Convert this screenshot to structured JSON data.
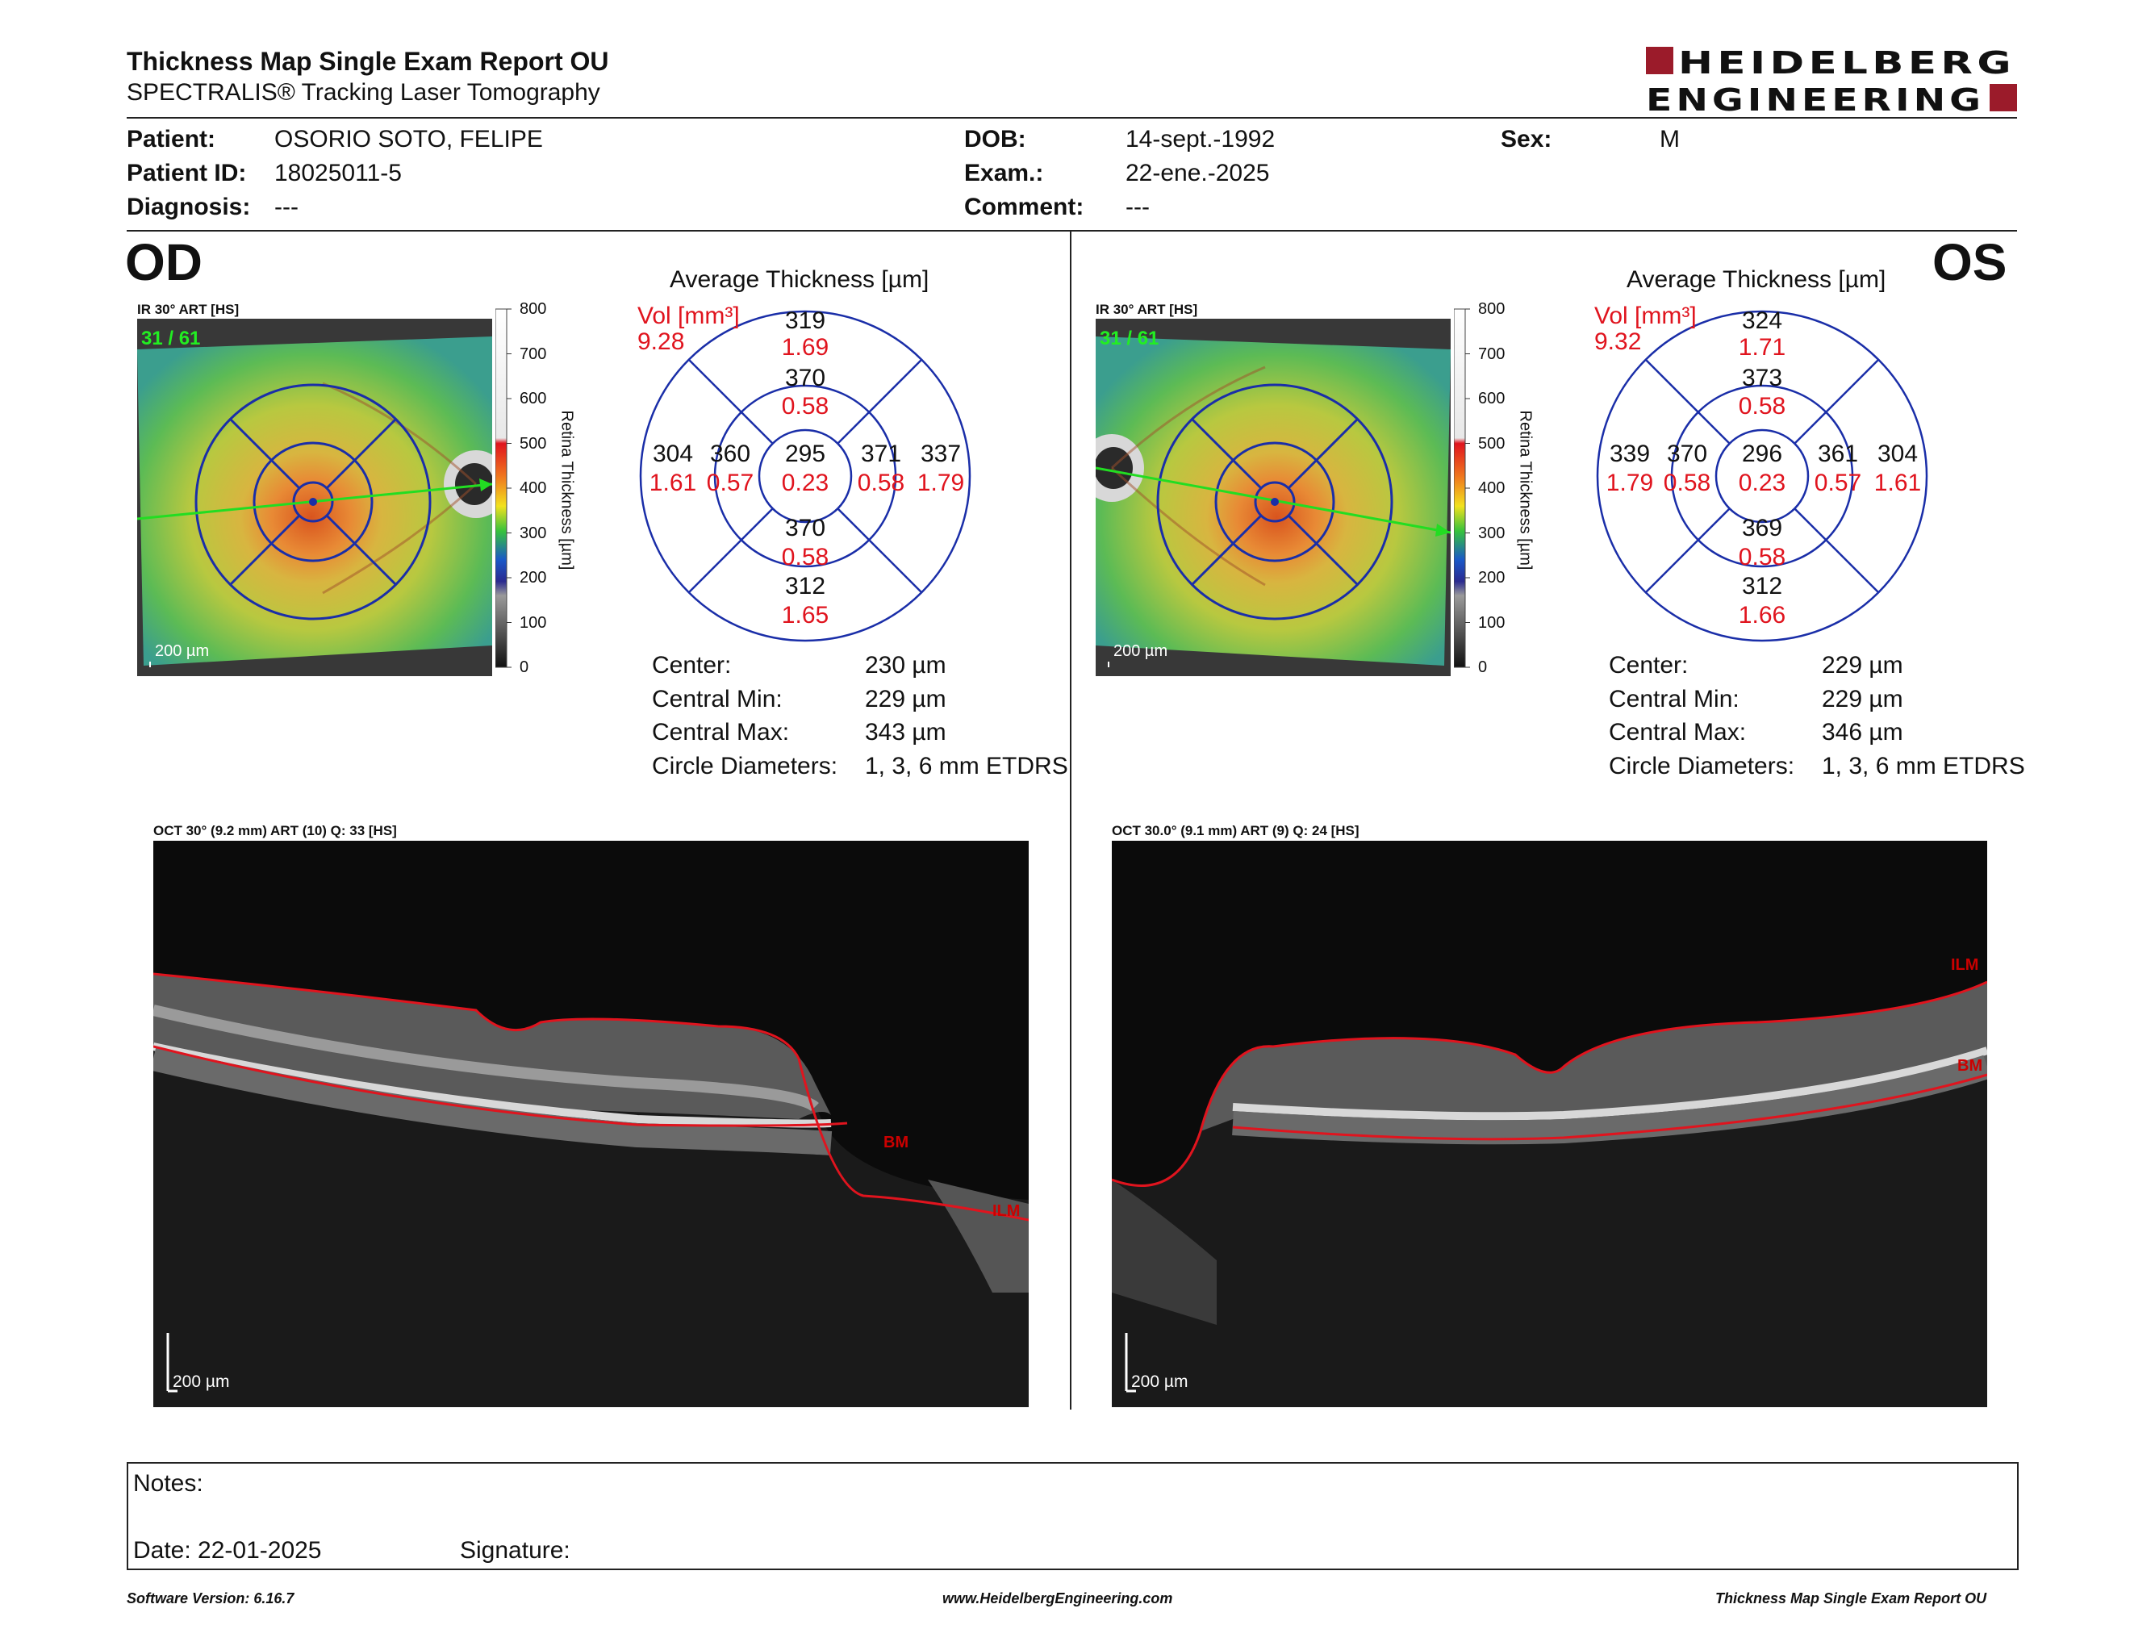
{
  "header": {
    "title": "Thickness Map Single Exam Report OU",
    "subtitle": "SPECTRALIS® Tracking Laser Tomography",
    "logo_line1": "HEIDELBERG",
    "logo_line2": "ENGINEERING"
  },
  "patient": {
    "patient_label": "Patient:",
    "patient_value": "OSORIO SOTO, FELIPE",
    "id_label": "Patient ID:",
    "id_value": "18025011-5",
    "diagnosis_label": "Diagnosis:",
    "diagnosis_value": "---",
    "dob_label": "DOB:",
    "dob_value": "14-sept.-1992",
    "exam_label": "Exam.:",
    "exam_value": "22-ene.-2025",
    "comment_label": "Comment:",
    "comment_value": "---",
    "sex_label": "Sex:",
    "sex_value": "M"
  },
  "od": {
    "eye": "OD",
    "ir_label": "IR 30° ART [HS]",
    "frame": "31 / 61",
    "scale": "200 µm",
    "colorbar": {
      "ticks": [
        "800",
        "700",
        "600",
        "500",
        "400",
        "300",
        "200",
        "100",
        "0"
      ],
      "label": "Retina Thickness [µm]"
    },
    "avg_title": "Average Thickness [µm]",
    "vol_label": "Vol [mm³]",
    "vol_value": "9.28",
    "sectors": {
      "outer_sup": {
        "t": "319",
        "v": "1.69"
      },
      "inner_sup": {
        "t": "370",
        "v": "0.58"
      },
      "outer_left": {
        "t": "304",
        "v": "1.61"
      },
      "inner_left": {
        "t": "360",
        "v": "0.57"
      },
      "center": {
        "t": "295",
        "v": "0.23"
      },
      "inner_right": {
        "t": "371",
        "v": "0.58"
      },
      "outer_right": {
        "t": "337",
        "v": "1.79"
      },
      "inner_inf": {
        "t": "370",
        "v": "0.58"
      },
      "outer_inf": {
        "t": "312",
        "v": "1.65"
      }
    },
    "stats": {
      "center_label": "Center:",
      "center_value": "230 µm",
      "min_label": "Central Min:",
      "min_value": "229 µm",
      "max_label": "Central Max:",
      "max_value": "343 µm",
      "circ_label": "Circle Diameters:",
      "circ_value": "1, 3, 6 mm ETDRS"
    },
    "oct_label": "OCT 30° (9.2 mm) ART (10) Q: 33 [HS]",
    "oct_scale": "200 µm",
    "layer_ilm": "ILM",
    "layer_bm": "BM"
  },
  "os": {
    "eye": "OS",
    "ir_label": "IR 30° ART [HS]",
    "frame": "31 / 61",
    "scale": "200 µm",
    "colorbar": {
      "ticks": [
        "800",
        "700",
        "600",
        "500",
        "400",
        "300",
        "200",
        "100",
        "0"
      ],
      "label": "Retina Thickness [µm]"
    },
    "avg_title": "Average Thickness [µm]",
    "vol_label": "Vol [mm³]",
    "vol_value": "9.32",
    "sectors": {
      "outer_sup": {
        "t": "324",
        "v": "1.71"
      },
      "inner_sup": {
        "t": "373",
        "v": "0.58"
      },
      "outer_left": {
        "t": "339",
        "v": "1.79"
      },
      "inner_left": {
        "t": "370",
        "v": "0.58"
      },
      "center": {
        "t": "296",
        "v": "0.23"
      },
      "inner_right": {
        "t": "361",
        "v": "0.57"
      },
      "outer_right": {
        "t": "304",
        "v": "1.61"
      },
      "inner_inf": {
        "t": "369",
        "v": "0.58"
      },
      "outer_inf": {
        "t": "312",
        "v": "1.66"
      }
    },
    "stats": {
      "center_label": "Center:",
      "center_value": "229 µm",
      "min_label": "Central Min:",
      "min_value": "229 µm",
      "max_label": "Central Max:",
      "max_value": "346 µm",
      "circ_label": "Circle Diameters:",
      "circ_value": "1, 3, 6 mm ETDRS"
    },
    "oct_label": "OCT 30.0° (9.1 mm) ART (9) Q: 24 [HS]",
    "oct_scale": "200 µm",
    "layer_ilm": "ILM",
    "layer_bm": "BM"
  },
  "notes": {
    "notes_label": "Notes:",
    "date_label": "Date: 22-01-2025",
    "signature_label": "Signature:"
  },
  "footer": {
    "version": "Software Version: 6.16.7",
    "website": "www.HeidelbergEngineering.com",
    "report": "Thickness Map Single Exam Report OU"
  },
  "colors": {
    "logo_red": "#9b1b2a",
    "value_red": "#e0141e",
    "grid_blue": "#1a2ea8"
  }
}
